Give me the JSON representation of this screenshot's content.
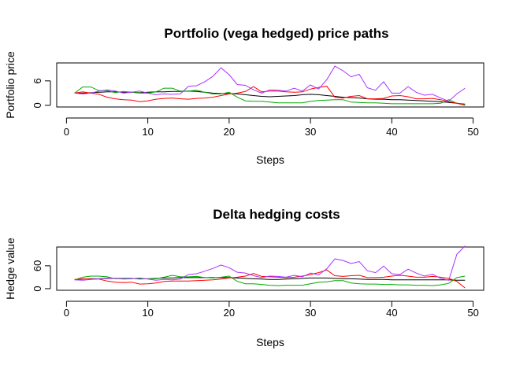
{
  "chart_data": [
    {
      "type": "line",
      "title": "Portfolio (vega hedged) price paths",
      "xlabel": "Steps",
      "ylabel": "Portfolio price",
      "xticks": [
        0,
        10,
        20,
        30,
        40,
        50
      ],
      "yticks": [
        0,
        6
      ],
      "xlim": [
        0,
        50
      ],
      "ylim": [
        0,
        10
      ],
      "x": [
        1,
        2,
        3,
        4,
        5,
        6,
        7,
        8,
        9,
        10,
        11,
        12,
        13,
        14,
        15,
        16,
        17,
        18,
        19,
        20,
        21,
        22,
        23,
        24,
        25,
        26,
        27,
        28,
        29,
        30,
        31,
        32,
        33,
        34,
        35,
        36,
        37,
        38,
        39,
        40,
        41,
        42,
        43,
        44,
        45,
        46,
        47,
        48,
        49
      ],
      "series": [
        {
          "color": "#000000",
          "values": [
            3.0,
            3.0,
            3.1,
            3.2,
            3.3,
            3.3,
            3.2,
            3.2,
            3.1,
            3.2,
            3.3,
            3.3,
            3.4,
            3.4,
            3.5,
            3.4,
            3.2,
            3.0,
            2.9,
            2.9,
            2.8,
            2.6,
            2.4,
            2.2,
            2.1,
            2.2,
            2.3,
            2.4,
            2.6,
            2.7,
            2.6,
            2.4,
            2.2,
            2.0,
            1.9,
            1.8,
            1.6,
            1.5,
            1.5,
            1.4,
            1.4,
            1.3,
            1.2,
            1.1,
            1.0,
            0.9,
            0.7,
            0.5,
            0.3
          ]
        },
        {
          "color": "#00aa00",
          "values": [
            3.0,
            4.5,
            4.5,
            3.6,
            3.6,
            3.1,
            3.4,
            3.2,
            3.0,
            3.0,
            3.3,
            4.2,
            4.2,
            3.5,
            3.5,
            3.7,
            3.2,
            2.8,
            2.8,
            3.2,
            2.0,
            1.1,
            1.0,
            1.0,
            0.8,
            0.6,
            0.6,
            0.6,
            0.6,
            1.0,
            1.2,
            1.3,
            1.4,
            1.4,
            0.8,
            0.7,
            0.6,
            0.6,
            0.5,
            0.4,
            0.4,
            0.4,
            0.4,
            0.4,
            0.4,
            0.5,
            1.4,
            0.5,
            0.2
          ]
        },
        {
          "color": "#ff0000",
          "values": [
            3.0,
            3.3,
            3.0,
            2.7,
            2.0,
            1.6,
            1.4,
            1.3,
            0.9,
            1.1,
            1.5,
            1.7,
            1.8,
            1.6,
            1.5,
            1.7,
            1.8,
            2.0,
            2.4,
            2.8,
            3.0,
            3.4,
            4.6,
            3.3,
            3.5,
            3.5,
            3.3,
            3.2,
            3.3,
            4.0,
            4.4,
            4.7,
            2.0,
            1.8,
            2.2,
            2.4,
            1.6,
            1.6,
            1.7,
            2.3,
            2.4,
            2.1,
            1.6,
            1.6,
            1.7,
            1.4,
            0.9,
            0.5,
            0.0
          ]
        },
        {
          "color": "#aa33ff",
          "values": [
            3.0,
            2.8,
            3.0,
            3.5,
            3.8,
            3.5,
            3.0,
            3.2,
            3.5,
            3.0,
            2.6,
            2.8,
            2.7,
            2.8,
            4.7,
            4.8,
            5.8,
            7.1,
            9.2,
            7.5,
            5.1,
            4.9,
            3.8,
            3.0,
            3.8,
            3.7,
            3.5,
            4.2,
            3.5,
            5.0,
            4.0,
            6.3,
            9.6,
            8.5,
            7.0,
            7.6,
            4.3,
            3.7,
            5.8,
            3.0,
            3.0,
            4.6,
            3.2,
            2.5,
            2.7,
            1.8,
            1.0,
            2.8,
            4.2
          ]
        }
      ]
    },
    {
      "type": "line",
      "title": "Delta hedging costs",
      "xlabel": "Steps",
      "ylabel": "Hedge value",
      "xticks": [
        0,
        10,
        20,
        30,
        40,
        50
      ],
      "yticks": [
        0,
        60
      ],
      "xlim": [
        0,
        50
      ],
      "ylim": [
        0,
        105
      ],
      "x": [
        1,
        2,
        3,
        4,
        5,
        6,
        7,
        8,
        9,
        10,
        11,
        12,
        13,
        14,
        15,
        16,
        17,
        18,
        19,
        20,
        21,
        22,
        23,
        24,
        25,
        26,
        27,
        28,
        29,
        30,
        31,
        32,
        33,
        34,
        35,
        36,
        37,
        38,
        39,
        40,
        41,
        42,
        43,
        44,
        45,
        46,
        47,
        48,
        49
      ],
      "series": [
        {
          "color": "#000000",
          "values": [
            24,
            25,
            26,
            26,
            27,
            27,
            27,
            27,
            26,
            26,
            27,
            28,
            28,
            29,
            29,
            29,
            29,
            29,
            29,
            29,
            28,
            27,
            26,
            25,
            24,
            24,
            25,
            26,
            27,
            28,
            28,
            28,
            27,
            26,
            26,
            25,
            24,
            24,
            24,
            23,
            23,
            23,
            23,
            23,
            23,
            23,
            23,
            22,
            22
          ]
        },
        {
          "color": "#00aa00",
          "values": [
            23,
            30,
            33,
            33,
            31,
            26,
            27,
            27,
            25,
            26,
            26,
            30,
            35,
            31,
            31,
            32,
            29,
            28,
            30,
            33,
            19,
            13,
            13,
            11,
            9,
            8,
            9,
            9,
            9,
            13,
            17,
            18,
            21,
            21,
            15,
            13,
            12,
            12,
            11,
            11,
            10,
            10,
            9,
            9,
            8,
            10,
            14,
            29,
            33
          ]
        },
        {
          "color": "#ff0000",
          "values": [
            23,
            26,
            25,
            25,
            20,
            17,
            16,
            17,
            12,
            13,
            15,
            19,
            20,
            20,
            20,
            21,
            22,
            23,
            25,
            28,
            30,
            33,
            40,
            32,
            31,
            30,
            29,
            30,
            33,
            37,
            42,
            49,
            34,
            32,
            34,
            35,
            29,
            29,
            30,
            33,
            35,
            33,
            30,
            30,
            32,
            30,
            27,
            19,
            2
          ]
        },
        {
          "color": "#aa33ff",
          "values": [
            23,
            22,
            24,
            26,
            28,
            27,
            25,
            26,
            28,
            25,
            22,
            24,
            23,
            25,
            37,
            39,
            46,
            53,
            62,
            55,
            43,
            41,
            34,
            29,
            33,
            32,
            30,
            35,
            31,
            41,
            36,
            52,
            78,
            74,
            66,
            71,
            47,
            42,
            59,
            39,
            37,
            51,
            41,
            33,
            38,
            27,
            22,
            90,
            112
          ]
        }
      ]
    }
  ]
}
